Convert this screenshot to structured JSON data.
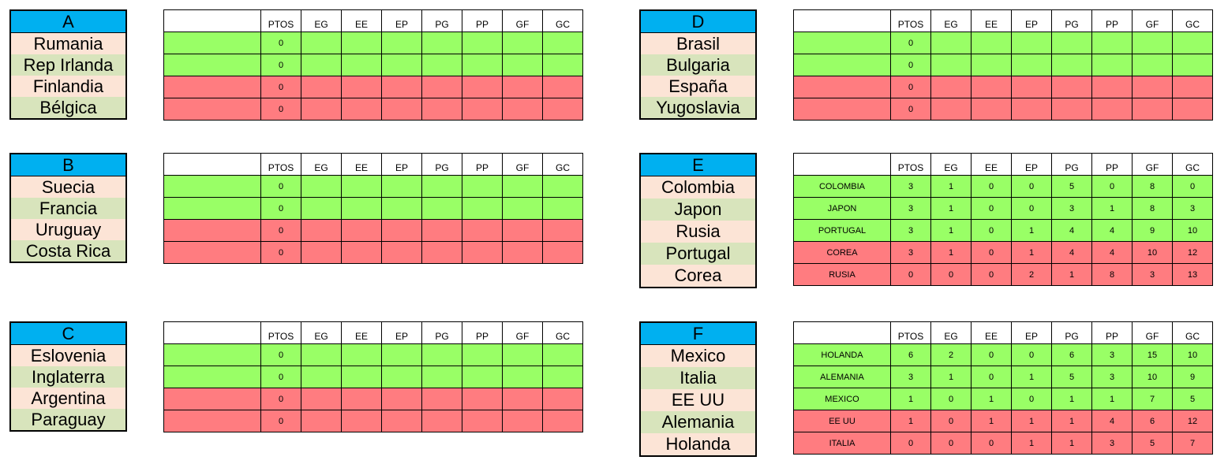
{
  "columns": [
    "PTOS",
    "EG",
    "EE",
    "EP",
    "PG",
    "PP",
    "GF",
    "GC"
  ],
  "groups": [
    {
      "id": "A",
      "teams": [
        "Rumania",
        "Rep Irlanda",
        "Finlandia",
        "Bélgica"
      ],
      "rows": [
        {
          "status": "green",
          "name": "",
          "values": [
            "0",
            "",
            "",
            "",
            "",
            "",
            "",
            ""
          ]
        },
        {
          "status": "green",
          "name": "",
          "values": [
            "0",
            "",
            "",
            "",
            "",
            "",
            "",
            ""
          ]
        },
        {
          "status": "red",
          "name": "",
          "values": [
            "0",
            "",
            "",
            "",
            "",
            "",
            "",
            ""
          ]
        },
        {
          "status": "red",
          "name": "",
          "values": [
            "0",
            "",
            "",
            "",
            "",
            "",
            "",
            ""
          ]
        }
      ]
    },
    {
      "id": "B",
      "teams": [
        "Suecia",
        "Francia",
        "Uruguay",
        "Costa Rica"
      ],
      "rows": [
        {
          "status": "green",
          "name": "",
          "values": [
            "0",
            "",
            "",
            "",
            "",
            "",
            "",
            ""
          ]
        },
        {
          "status": "green",
          "name": "",
          "values": [
            "0",
            "",
            "",
            "",
            "",
            "",
            "",
            ""
          ]
        },
        {
          "status": "red",
          "name": "",
          "values": [
            "0",
            "",
            "",
            "",
            "",
            "",
            "",
            ""
          ]
        },
        {
          "status": "red",
          "name": "",
          "values": [
            "0",
            "",
            "",
            "",
            "",
            "",
            "",
            ""
          ]
        }
      ]
    },
    {
      "id": "C",
      "teams": [
        "Eslovenia",
        "Inglaterra",
        "Argentina",
        "Paraguay"
      ],
      "rows": [
        {
          "status": "green",
          "name": "",
          "values": [
            "0",
            "",
            "",
            "",
            "",
            "",
            "",
            ""
          ]
        },
        {
          "status": "green",
          "name": "",
          "values": [
            "0",
            "",
            "",
            "",
            "",
            "",
            "",
            ""
          ]
        },
        {
          "status": "red",
          "name": "",
          "values": [
            "0",
            "",
            "",
            "",
            "",
            "",
            "",
            ""
          ]
        },
        {
          "status": "red",
          "name": "",
          "values": [
            "0",
            "",
            "",
            "",
            "",
            "",
            "",
            ""
          ]
        }
      ]
    },
    {
      "id": "D",
      "teams": [
        "Brasil",
        "Bulgaria",
        "España",
        "Yugoslavia"
      ],
      "rows": [
        {
          "status": "green",
          "name": "",
          "values": [
            "0",
            "",
            "",
            "",
            "",
            "",
            "",
            ""
          ]
        },
        {
          "status": "green",
          "name": "",
          "values": [
            "0",
            "",
            "",
            "",
            "",
            "",
            "",
            ""
          ]
        },
        {
          "status": "red",
          "name": "",
          "values": [
            "0",
            "",
            "",
            "",
            "",
            "",
            "",
            ""
          ]
        },
        {
          "status": "red",
          "name": "",
          "values": [
            "0",
            "",
            "",
            "",
            "",
            "",
            "",
            ""
          ]
        }
      ]
    },
    {
      "id": "E",
      "teams": [
        "Colombia",
        "Japon",
        "Rusia",
        "Portugal",
        "Corea"
      ],
      "rows": [
        {
          "status": "green",
          "name": "COLOMBIA",
          "values": [
            "3",
            "1",
            "0",
            "0",
            "5",
            "0",
            "8",
            "0"
          ]
        },
        {
          "status": "green",
          "name": "JAPON",
          "values": [
            "3",
            "1",
            "0",
            "0",
            "3",
            "1",
            "8",
            "3"
          ]
        },
        {
          "status": "green",
          "name": "PORTUGAL",
          "values": [
            "3",
            "1",
            "0",
            "1",
            "4",
            "4",
            "9",
            "10"
          ]
        },
        {
          "status": "red",
          "name": "COREA",
          "values": [
            "3",
            "1",
            "0",
            "1",
            "4",
            "4",
            "10",
            "12"
          ]
        },
        {
          "status": "red",
          "name": "RUSIA",
          "values": [
            "0",
            "0",
            "0",
            "2",
            "1",
            "8",
            "3",
            "13"
          ]
        }
      ]
    },
    {
      "id": "F",
      "teams": [
        "Mexico",
        "Italia",
        "EE UU",
        "Alemania",
        "Holanda"
      ],
      "rows": [
        {
          "status": "green",
          "name": "HOLANDA",
          "values": [
            "6",
            "2",
            "0",
            "0",
            "6",
            "3",
            "15",
            "10"
          ]
        },
        {
          "status": "green",
          "name": "ALEMANIA",
          "values": [
            "3",
            "1",
            "0",
            "1",
            "5",
            "3",
            "10",
            "9"
          ]
        },
        {
          "status": "green",
          "name": "MEXICO",
          "values": [
            "1",
            "0",
            "1",
            "0",
            "1",
            "1",
            "7",
            "5"
          ]
        },
        {
          "status": "red",
          "name": "EE UU",
          "values": [
            "1",
            "0",
            "1",
            "1",
            "1",
            "4",
            "6",
            "12"
          ]
        },
        {
          "status": "red",
          "name": "ITALIA",
          "values": [
            "0",
            "0",
            "0",
            "1",
            "1",
            "3",
            "5",
            "7"
          ]
        }
      ]
    }
  ],
  "colors": {
    "header": "#00b0f0",
    "team_odd": "#fce4d6",
    "team_even": "#d8e4bc",
    "qualified": "#99ff66",
    "eliminated": "#ff7c80"
  }
}
